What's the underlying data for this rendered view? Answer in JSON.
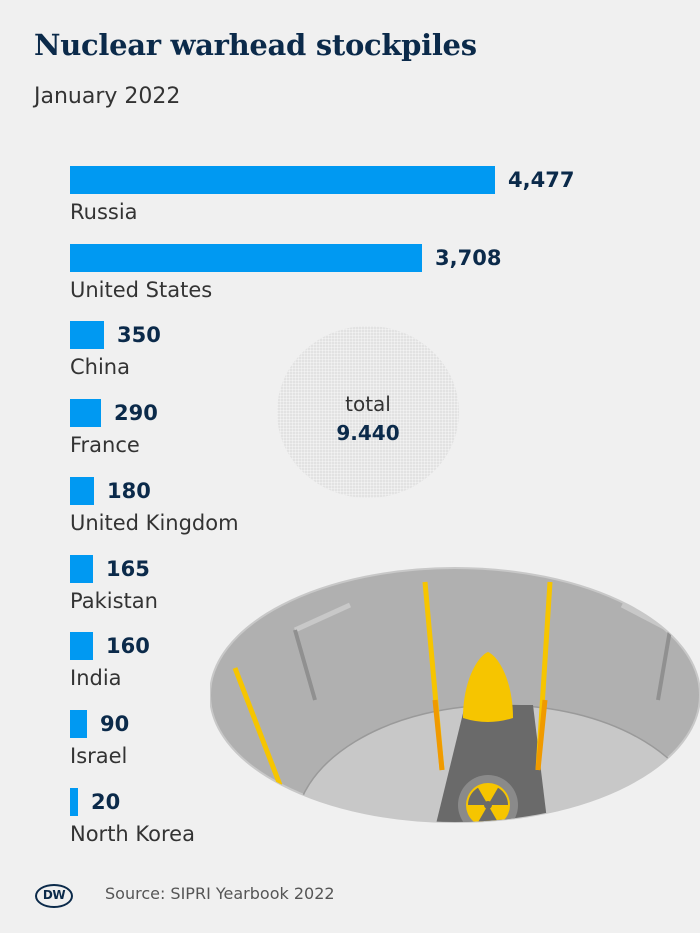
{
  "title": "Nuclear warhead stockpiles",
  "subtitle": "January 2022",
  "total": {
    "label": "total",
    "value": "9.440"
  },
  "source": "Source: SIPRI Yearbook 2022",
  "logo": "DW",
  "colors": {
    "bar": "#0099f2",
    "title": "#0b2a4a",
    "background": "#f0f0f0"
  },
  "chart_data": {
    "type": "bar",
    "orientation": "horizontal",
    "categories": [
      "Russia",
      "United States",
      "China",
      "France",
      "United Kingdom",
      "Pakistan",
      "India",
      "Israel",
      "North Korea"
    ],
    "values": [
      4477,
      3708,
      350,
      290,
      180,
      165,
      160,
      90,
      20
    ],
    "value_labels": [
      "4,477",
      "3,708",
      "350",
      "290",
      "180",
      "165",
      "160",
      "90",
      "20"
    ],
    "title": "Nuclear warhead stockpiles",
    "subtitle": "January 2022",
    "grid": false
  }
}
